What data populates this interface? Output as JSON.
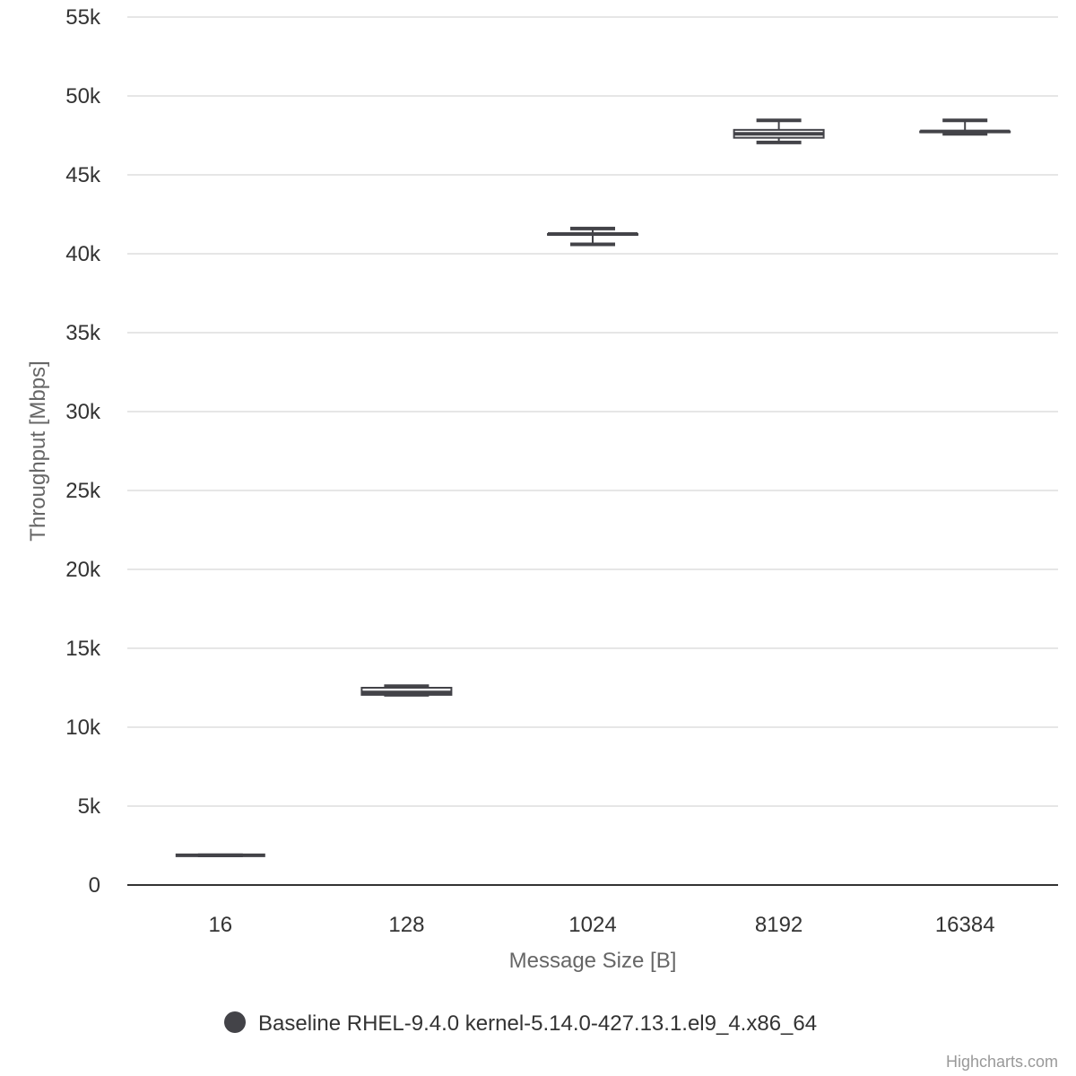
{
  "chart_data": {
    "type": "boxplot",
    "title": "",
    "xlabel": "Message Size [B]",
    "ylabel": "Throughput [Mbps]",
    "categories": [
      "16",
      "128",
      "1024",
      "8192",
      "16384"
    ],
    "ylim": [
      0,
      55000
    ],
    "yticks": [
      0,
      5000,
      10000,
      15000,
      20000,
      25000,
      30000,
      35000,
      40000,
      45000,
      50000,
      55000
    ],
    "ytick_labels": [
      "0",
      "5k",
      "10k",
      "15k",
      "20k",
      "25k",
      "30k",
      "35k",
      "40k",
      "45k",
      "50k",
      "55k"
    ],
    "grid": true,
    "legend_position": "bottom-center",
    "series": [
      {
        "name": "Baseline RHEL-9.4.0 kernel-5.14.0-427.13.1.el9_4.x86_64",
        "color": "#434348",
        "data": [
          {
            "category": "16",
            "low": 1880,
            "q1": 1880,
            "median": 1880,
            "q3": 1880,
            "high": 1880
          },
          {
            "category": "128",
            "low": 12050,
            "q1": 12050,
            "median": 12200,
            "q3": 12500,
            "high": 12600
          },
          {
            "category": "1024",
            "low": 40600,
            "q1": 41200,
            "median": 41250,
            "q3": 41250,
            "high": 41600
          },
          {
            "category": "8192",
            "low": 47050,
            "q1": 47350,
            "median": 47600,
            "q3": 47850,
            "high": 48450
          },
          {
            "category": "16384",
            "low": 47600,
            "q1": 47700,
            "median": 47750,
            "q3": 47750,
            "high": 48450
          }
        ]
      }
    ]
  },
  "credits": "Highcharts.com"
}
